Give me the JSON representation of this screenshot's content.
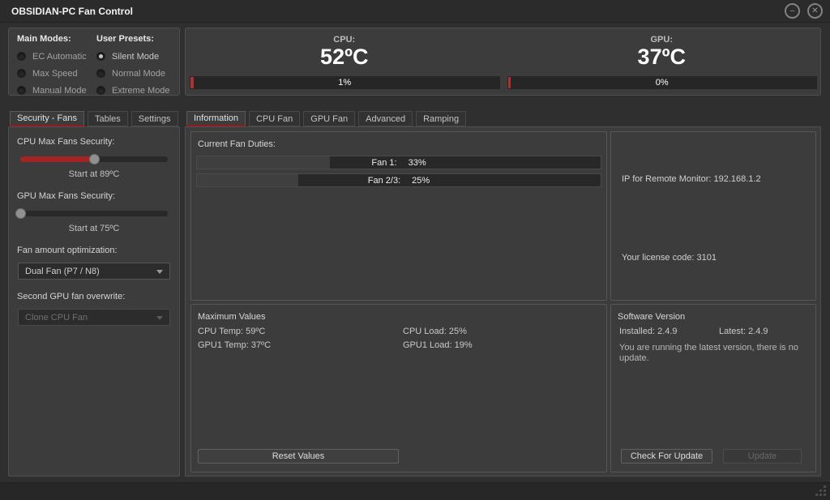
{
  "window": {
    "title": "OBSIDIAN-PC Fan Control",
    "minimize_glyph": "–",
    "close_glyph": "✕"
  },
  "colors": {
    "accent_red": "#8e1c1c",
    "slider_red": "#a32424",
    "gauge_red": "#b23030",
    "panel_bg": "#3c3c3c",
    "window_bg": "#2f2f2f"
  },
  "main_modes": {
    "title": "Main Modes:",
    "options": [
      {
        "label": "EC Automatic",
        "selected": false
      },
      {
        "label": "Max Speed",
        "selected": false
      },
      {
        "label": "Manual Mode",
        "selected": false
      }
    ]
  },
  "user_presets": {
    "title": "User Presets:",
    "options": [
      {
        "label": "Silent Mode",
        "selected": true
      },
      {
        "label": "Normal Mode",
        "selected": false
      },
      {
        "label": "Extreme Mode",
        "selected": false
      }
    ]
  },
  "gauges": {
    "cpu": {
      "label": "CPU:",
      "temp": "52ºC",
      "percent_label": "1%",
      "percent": 1
    },
    "gpu": {
      "label": "GPU:",
      "temp": "37ºC",
      "percent_label": "0%",
      "percent": 0
    }
  },
  "sidebar": {
    "tabs": [
      {
        "label": "Security - Fans",
        "active": true
      },
      {
        "label": "Tables",
        "active": false
      },
      {
        "label": "Settings",
        "active": false
      }
    ],
    "cpu_security": {
      "label": "CPU Max Fans Security:",
      "percent": 50,
      "caption": "Start at 89ºC"
    },
    "gpu_security": {
      "label": "GPU Max Fans Security:",
      "percent": 0,
      "caption": "Start at 75ºC"
    },
    "fan_optimization": {
      "label": "Fan amount optimization:",
      "value": "Dual Fan (P7 / N8)",
      "disabled": false
    },
    "gpu_overwrite": {
      "label": "Second GPU fan overwrite:",
      "value": "Clone CPU Fan",
      "disabled": true
    }
  },
  "main": {
    "tabs": [
      {
        "label": "Information",
        "active": true
      },
      {
        "label": "CPU Fan",
        "active": false
      },
      {
        "label": "GPU Fan",
        "active": false
      },
      {
        "label": "Advanced",
        "active": false
      },
      {
        "label": "Ramping",
        "active": false
      }
    ],
    "fan_duties": {
      "title": "Current Fan Duties:",
      "fans": [
        {
          "label": "Fan 1:",
          "value": "33%",
          "percent": 33
        },
        {
          "label": "Fan 2/3:",
          "value": "25%",
          "percent": 25
        }
      ]
    },
    "remote": {
      "ip": "IP for Remote Monitor: 192.168.1.2",
      "license": "Your license code: 3101"
    },
    "max_values": {
      "title": "Maximum Values",
      "cpu_temp": "CPU Temp: 59ºC",
      "gpu_temp": "GPU1 Temp: 37ºC",
      "cpu_load": "CPU Load: 25%",
      "gpu_load": "GPU1 Load: 19%",
      "reset_label": "Reset Values"
    },
    "software": {
      "title": "Software Version",
      "installed": "Installed: 2.4.9",
      "latest": "Latest: 2.4.9",
      "status": "You are running the latest version, there is no update.",
      "check_label": "Check For Update",
      "update_label": "Update",
      "update_disabled": true
    }
  }
}
